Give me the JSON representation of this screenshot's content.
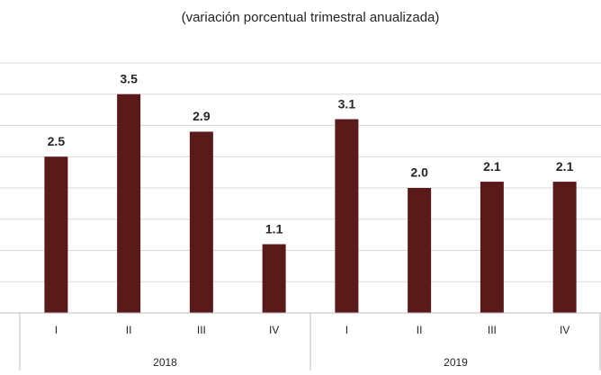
{
  "chart_data": {
    "type": "bar",
    "subtitle": "(variación porcentual trimestral anualizada)",
    "categories": [
      "I",
      "II",
      "III",
      "IV",
      "I",
      "II",
      "III",
      "IV"
    ],
    "groups": [
      {
        "label": "2018",
        "size": 4
      },
      {
        "label": "2019",
        "size": 4
      }
    ],
    "values": [
      2.5,
      3.5,
      2.9,
      1.1,
      3.1,
      2.0,
      2.1,
      2.1
    ],
    "value_labels": [
      "2.5",
      "3.5",
      "2.9",
      "1.1",
      "3.1",
      "2.0",
      "2.1",
      "2.1"
    ],
    "color": "#5b1a1a",
    "ylim": [
      0,
      4
    ],
    "yticks": [
      0,
      0.5,
      1,
      1.5,
      2,
      2.5,
      3,
      3.5,
      4
    ],
    "grid": true
  }
}
